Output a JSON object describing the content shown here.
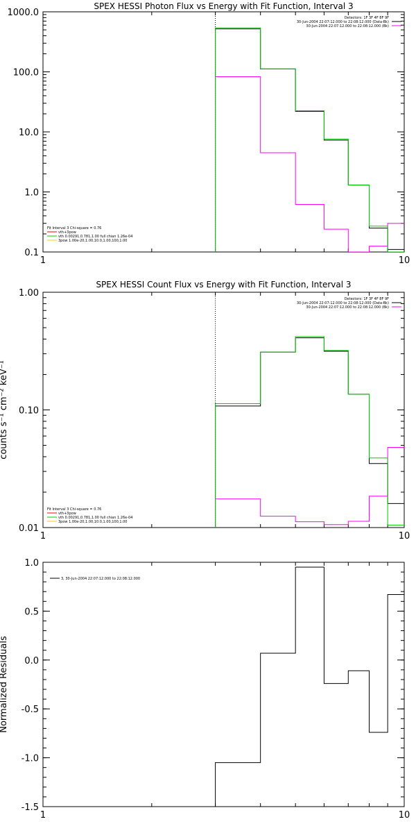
{
  "chart_data": [
    {
      "type": "line",
      "title": "SPEX HESSI Photon Flux vs Energy with Fit Function, Interval 3",
      "xlabel": "",
      "ylabel": "",
      "xscale": "log",
      "yscale": "log",
      "xlim": [
        1,
        10
      ],
      "ylim": [
        0.1,
        1000
      ],
      "x_ticks": [
        {
          "v": 1,
          "t": "1"
        },
        {
          "v": 10,
          "t": "10"
        }
      ],
      "y_ticks": [
        {
          "v": 0.1,
          "t": "0.1"
        },
        {
          "v": 1,
          "t": "1.0"
        },
        {
          "v": 10,
          "t": "10.0"
        },
        {
          "v": 100,
          "t": "100.0"
        },
        {
          "v": 1000,
          "t": "1000.0"
        }
      ],
      "grid": false,
      "vline": 3.0,
      "bin_edges": [
        3.0,
        4.0,
        5.0,
        6.0,
        7.0,
        8.0,
        9.0,
        10.0
      ],
      "series": [
        {
          "color": "#000000",
          "values": [
            520,
            112,
            22,
            7.3,
            1.3,
            0.25,
            0.11
          ]
        },
        {
          "color": "#ff00ff",
          "values": [
            83,
            4.5,
            0.62,
            0.24,
            0.1,
            0.125,
            0.3
          ]
        },
        {
          "color": "#00cc00",
          "values": [
            540,
            112,
            22.5,
            7.6,
            1.3,
            0.27,
            0.095
          ]
        }
      ],
      "legend_right": [
        {
          "text": "Detectors: 1F 3F 4F 8F 9F",
          "color": ""
        },
        {
          "text": "30-Jun-2004 22:07:12.000 to 22:08:12.000 (Data-Bk)",
          "color": "#000000"
        },
        {
          "text": "30-Jun-2004 22:07:12.000 to 22:08:12.000 (Bk)",
          "color": "#ff00ff"
        }
      ],
      "legend_left": [
        {
          "text": "Fit Interval 3   Chi-square = 0.76",
          "color": ""
        },
        {
          "text": "vth+3pow",
          "color": "#ff0000"
        },
        {
          "text": "vth 0.00291,0.781,1.00  full chian 1.26e-04",
          "color": "#00cc00"
        },
        {
          "text": "3pow 1.00e-20,1.00,10.0,1.00,100,1.00",
          "color": "#ffcc00"
        }
      ]
    },
    {
      "type": "line",
      "title": "SPEX HESSI Count Flux vs Energy with Fit Function, Interval 3",
      "xlabel": "",
      "ylabel": "counts s⁻¹ cm⁻² keV⁻¹",
      "xscale": "log",
      "yscale": "log",
      "xlim": [
        1,
        10
      ],
      "ylim": [
        0.01,
        1.0
      ],
      "x_ticks": [
        {
          "v": 1,
          "t": "1"
        },
        {
          "v": 10,
          "t": "10"
        }
      ],
      "y_ticks": [
        {
          "v": 0.01,
          "t": "0.01"
        },
        {
          "v": 0.1,
          "t": "0.10"
        },
        {
          "v": 1.0,
          "t": "1.00"
        }
      ],
      "grid": false,
      "vline": 3.0,
      "bin_edges": [
        3.0,
        4.0,
        5.0,
        6.0,
        7.0,
        8.0,
        9.0,
        10.0
      ],
      "series": [
        {
          "color": "#000000",
          "values": [
            0.108,
            0.31,
            0.41,
            0.315,
            0.136,
            0.035,
            0.016
          ]
        },
        {
          "color": "#ff00ff",
          "values": [
            0.0175,
            0.0125,
            0.0112,
            0.0106,
            0.0113,
            0.0185,
            0.048
          ]
        },
        {
          "color": "#00cc00",
          "values": [
            0.113,
            0.31,
            0.42,
            0.32,
            0.136,
            0.039,
            0.0105
          ]
        }
      ],
      "legend_right": [
        {
          "text": "Detectors: 1F 3F 4F 8F 9F",
          "color": ""
        },
        {
          "text": "30-Jun-2004 22:07:12.000 to 22:08:12.000 (Data-Bk)",
          "color": "#000000"
        },
        {
          "text": "30-Jun-2004 22:07:12.000 to 22:08:12.000 (Bk)",
          "color": "#ff00ff"
        }
      ],
      "legend_left": [
        {
          "text": "Fit Interval 3   Chi-square = 0.76",
          "color": ""
        },
        {
          "text": "vth+3pow",
          "color": "#ff0000"
        },
        {
          "text": "vth 0.00291,0.781,1.00  full chian 1.26e-04",
          "color": "#00cc00"
        },
        {
          "text": "3pow 1.00e-20,1.00,10.0,1.00,100,1.00",
          "color": "#ffcc00"
        }
      ]
    },
    {
      "type": "line",
      "title": "",
      "xlabel": "",
      "ylabel": "Normalized Residuals",
      "xscale": "log",
      "yscale": "linear",
      "xlim": [
        1,
        10
      ],
      "ylim": [
        -1.5,
        1.0
      ],
      "x_ticks": [
        {
          "v": 1,
          "t": "1"
        },
        {
          "v": 10,
          "t": "10"
        }
      ],
      "y_ticks": [
        {
          "v": -1.5,
          "t": "-1.5"
        },
        {
          "v": -1.0,
          "t": "-1.0"
        },
        {
          "v": -0.5,
          "t": "-0.5"
        },
        {
          "v": 0.0,
          "t": "0.0"
        },
        {
          "v": 0.5,
          "t": "0.5"
        },
        {
          "v": 1.0,
          "t": "1.0"
        }
      ],
      "grid": false,
      "vline": null,
      "bin_edges": [
        3.0,
        4.0,
        5.0,
        6.0,
        7.0,
        8.0,
        9.0,
        10.0
      ],
      "series": [
        {
          "color": "#000000",
          "values": [
            -1.05,
            0.07,
            0.95,
            -0.24,
            -0.11,
            -0.74,
            0.67
          ]
        }
      ],
      "legend_right": [],
      "legend_left": [],
      "legend_top": [
        {
          "text": "3, 30-Jun-2004 22:07:12.000 to 22:08:12.000",
          "color": "#000000"
        }
      ]
    }
  ]
}
